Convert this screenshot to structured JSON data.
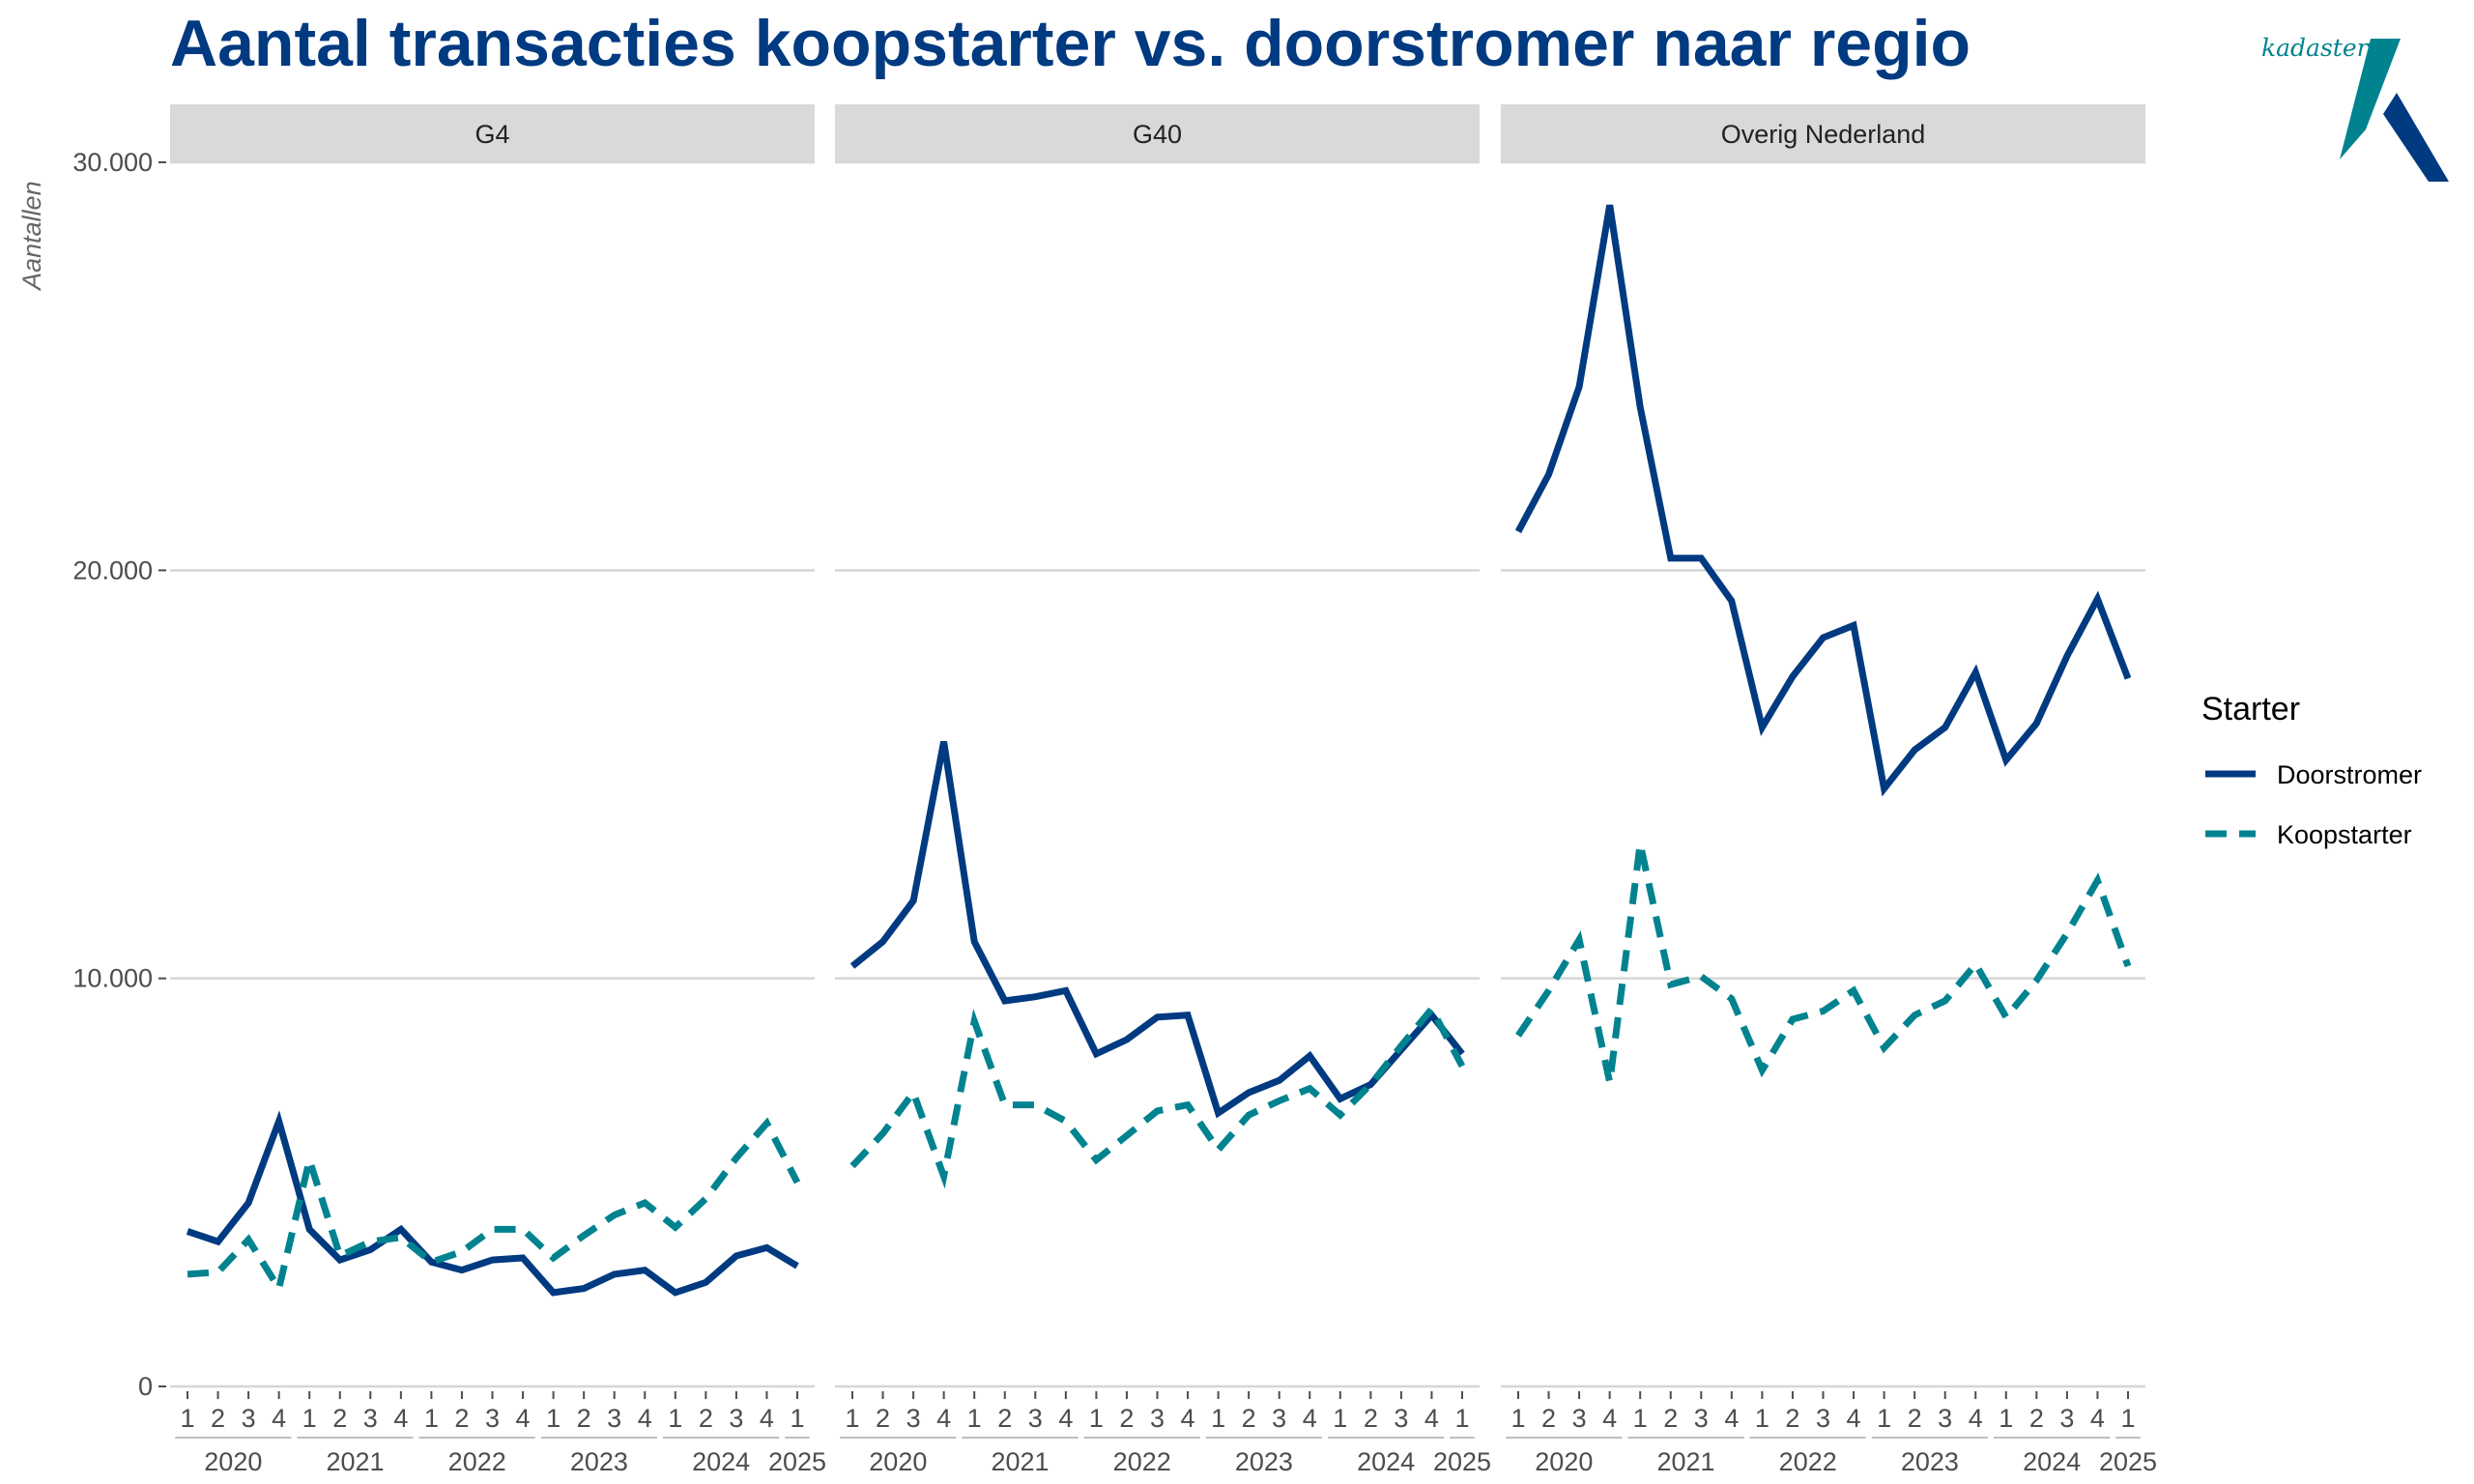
{
  "chart_data": {
    "type": "line",
    "title": "Aantal transacties koopstarter vs. doorstromer naar regio",
    "ylabel": "Aantallen",
    "xlabel": "",
    "ylim": [
      0,
      30000
    ],
    "yticks": [
      0,
      10000,
      20000,
      30000
    ],
    "ytick_labels": [
      "0",
      "10.000",
      "20.000",
      "30.000"
    ],
    "quarter_labels": [
      "1",
      "2",
      "3",
      "4",
      "1",
      "2",
      "3",
      "4",
      "1",
      "2",
      "3",
      "4",
      "1",
      "2",
      "3",
      "4",
      "1",
      "2",
      "3",
      "4",
      "1"
    ],
    "years": [
      {
        "label": "2020",
        "start": 0,
        "end": 3
      },
      {
        "label": "2021",
        "start": 4,
        "end": 7
      },
      {
        "label": "2022",
        "start": 8,
        "end": 11
      },
      {
        "label": "2023",
        "start": 12,
        "end": 15
      },
      {
        "label": "2024",
        "start": 16,
        "end": 19
      },
      {
        "label": "2025",
        "start": 20,
        "end": 20
      }
    ],
    "legend": {
      "title": "Starter",
      "placement": "right",
      "entries": [
        {
          "name": "Doorstromer",
          "color": "#003a80",
          "style": "solid"
        },
        {
          "name": "Koopstarter",
          "color": "#00838f",
          "style": "dashed"
        }
      ]
    },
    "panels": [
      {
        "name": "G4",
        "series": [
          {
            "name": "Doorstromer",
            "values": [
              3800,
              3550,
              4500,
              6500,
              3850,
              3100,
              3350,
              3850,
              3050,
              2850,
              3100,
              3150,
              2300,
              2400,
              2750,
              2850,
              2300,
              2550,
              3200,
              3400,
              2950
            ]
          },
          {
            "name": "Koopstarter",
            "values": [
              2750,
              2800,
              3600,
              2400,
              5550,
              3200,
              3550,
              3650,
              3050,
              3300,
              3850,
              3850,
              3150,
              3700,
              4200,
              4500,
              3900,
              4600,
              5600,
              6450,
              5000
            ]
          }
        ]
      },
      {
        "name": "G40",
        "series": [
          {
            "name": "Doorstromer",
            "values": [
              10300,
              10900,
              11900,
              15800,
              10900,
              9450,
              9550,
              9700,
              8150,
              8500,
              9050,
              9100,
              6700,
              7200,
              7500,
              8100,
              7050,
              7400,
              8250,
              9100,
              8150
            ]
          },
          {
            "name": "Koopstarter",
            "values": [
              5400,
              6200,
              7200,
              5150,
              8950,
              6900,
              6900,
              6500,
              5550,
              6150,
              6750,
              6900,
              5800,
              6650,
              7000,
              7300,
              6650,
              7400,
              8350,
              9250,
              7850
            ]
          }
        ]
      },
      {
        "name": "Overig Nederland",
        "series": [
          {
            "name": "Doorstromer",
            "values": [
              20950,
              22350,
              24500,
              28950,
              24000,
              20300,
              20300,
              19250,
              16150,
              17400,
              18350,
              18650,
              14650,
              15600,
              16150,
              17500,
              15350,
              16250,
              17900,
              19300,
              17350
            ]
          },
          {
            "name": "Koopstarter",
            "values": [
              8600,
              9700,
              10950,
              7450,
              13300,
              9850,
              10050,
              9500,
              7750,
              9000,
              9200,
              9700,
              8300,
              9100,
              9450,
              10350,
              9050,
              9950,
              11100,
              12400,
              10300
            ]
          }
        ]
      }
    ]
  },
  "logo": {
    "text": "kadaster",
    "colors": {
      "teal": "#00838f",
      "navy": "#003a80"
    }
  },
  "colors": {
    "doorstromer": "#003a80",
    "koopstarter": "#00838f",
    "strip": "#d9d9d9",
    "grid": "#d6d6d6",
    "tick": "#4d4d4d"
  }
}
